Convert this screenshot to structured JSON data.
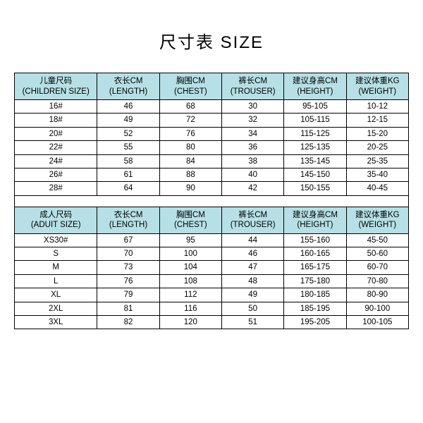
{
  "title": "尺寸表 SIZE",
  "colors": {
    "header_bg": "#b6e0e5",
    "border": "#000000",
    "text": "#000000",
    "background": "#ffffff"
  },
  "children": {
    "columns": [
      {
        "zh": "儿童尺码",
        "en": "(CHILDREN SIZE)"
      },
      {
        "zh": "衣长CM",
        "en": "(LENGTH)"
      },
      {
        "zh": "胸围CM",
        "en": "(CHEST)"
      },
      {
        "zh": "裤长CM",
        "en": "(TROUSER)"
      },
      {
        "zh": "建议身高CM",
        "en": "(HEIGHT)"
      },
      {
        "zh": "建议体重KG",
        "en": "(WEIGHT)"
      }
    ],
    "rows": [
      [
        "16#",
        "46",
        "68",
        "30",
        "95-105",
        "10-12"
      ],
      [
        "18#",
        "49",
        "72",
        "32",
        "105-115",
        "12-15"
      ],
      [
        "20#",
        "52",
        "76",
        "34",
        "115-125",
        "15-20"
      ],
      [
        "22#",
        "55",
        "80",
        "36",
        "125-135",
        "20-25"
      ],
      [
        "24#",
        "58",
        "84",
        "38",
        "135-145",
        "25-35"
      ],
      [
        "26#",
        "61",
        "88",
        "40",
        "145-150",
        "35-40"
      ],
      [
        "28#",
        "64",
        "90",
        "42",
        "150-155",
        "40-45"
      ]
    ]
  },
  "adult": {
    "columns": [
      {
        "zh": "成人尺码",
        "en": "(ADUIT SIZE)"
      },
      {
        "zh": "衣长CM",
        "en": "(LENGTH)"
      },
      {
        "zh": "胸围CM",
        "en": "(CHEST)"
      },
      {
        "zh": "裤长CM",
        "en": "(TROUSER)"
      },
      {
        "zh": "建议身高CM",
        "en": "(HEIGHT)"
      },
      {
        "zh": "建议体重KG",
        "en": "(WEIGHT)"
      }
    ],
    "rows": [
      [
        "XS30#",
        "67",
        "95",
        "44",
        "155-160",
        "45-50"
      ],
      [
        "S",
        "70",
        "100",
        "46",
        "160-165",
        "50-60"
      ],
      [
        "M",
        "73",
        "104",
        "47",
        "165-175",
        "60-70"
      ],
      [
        "L",
        "76",
        "108",
        "48",
        "175-180",
        "70-80"
      ],
      [
        "XL",
        "79",
        "112",
        "49",
        "180-185",
        "80-90"
      ],
      [
        "2XL",
        "81",
        "116",
        "50",
        "185-195",
        "90-100"
      ],
      [
        "3XL",
        "82",
        "120",
        "51",
        "195-205",
        "100-105"
      ]
    ]
  }
}
